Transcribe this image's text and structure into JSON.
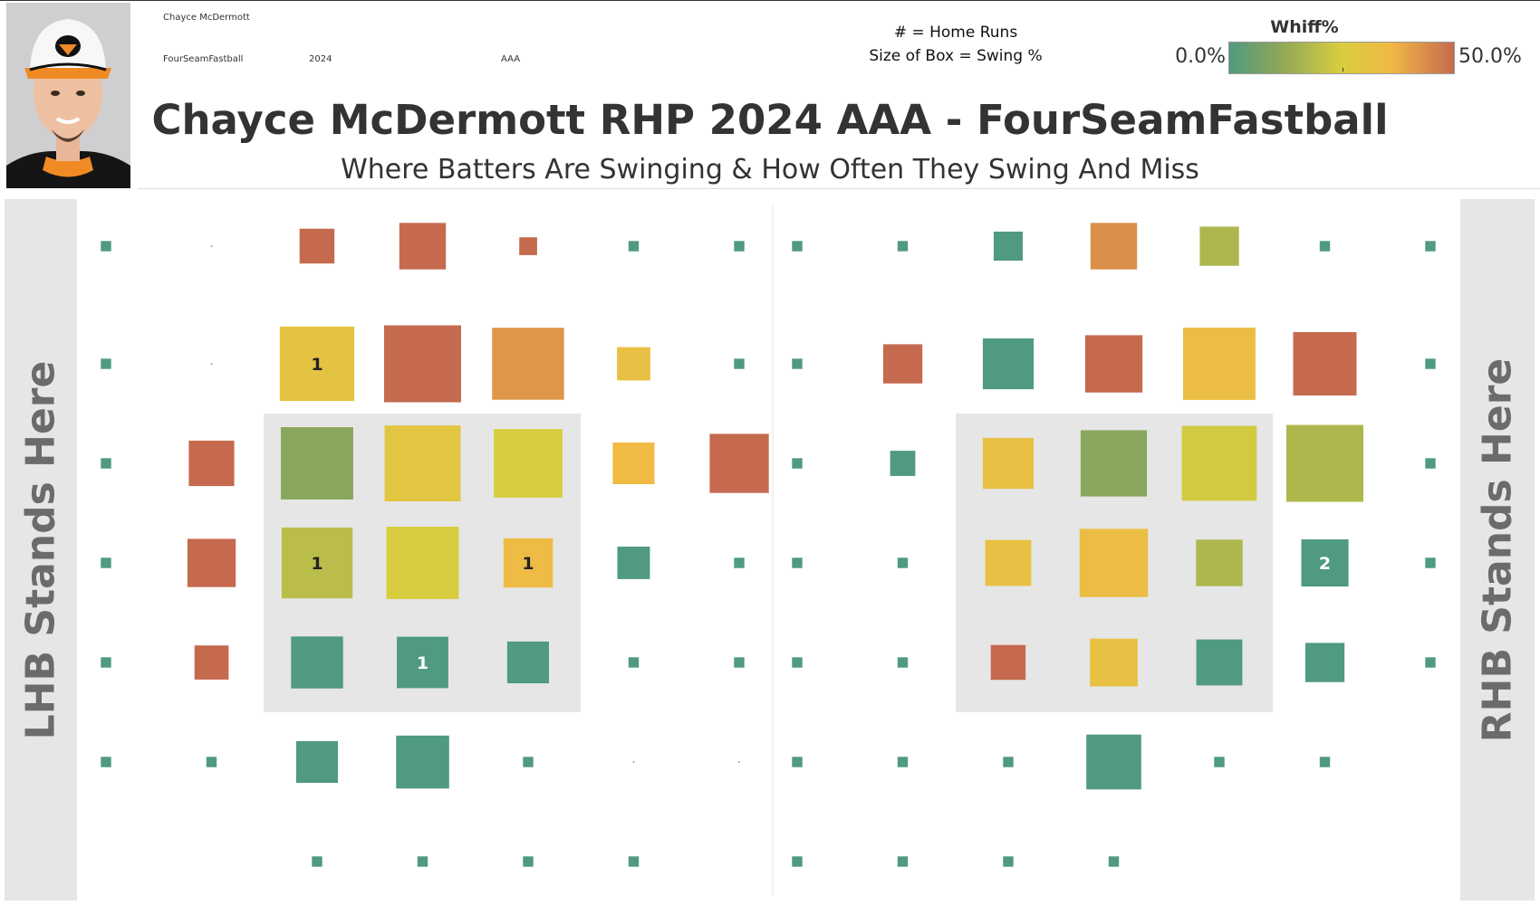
{
  "meta": {
    "player": "Chayce McDermott",
    "pitch": "FourSeamFastball",
    "season": "2024",
    "level": "AAA"
  },
  "photo": {
    "icon": "player-headshot-orioles-cap"
  },
  "legend": {
    "home_runs": "# = Home Runs",
    "box_size": "Size of Box = Swing %",
    "whiff_title": "Whiff%",
    "whiff_min_label": "0.0%",
    "whiff_max_label": "50.0%"
  },
  "title": "Chayce McDermott RHP 2024 AAA - FourSeamFastball",
  "subtitle": "Where Batters Are Swinging & How Often They Swing And Miss",
  "panels": {
    "lhb_label": "LHB Stands Here",
    "rhb_label": "RHB Stands Here"
  },
  "colors": {
    "scale": [
      "#4f9a80",
      "#8ca65a",
      "#d8cd3f",
      "#f1b945",
      "#c56a4f"
    ],
    "strike_zone": "#e6e6e6"
  },
  "chart_data": [
    {
      "type": "heatmap",
      "title": "LHB",
      "x_cells": 7,
      "y_cells": 7,
      "whiff_range": [
        0,
        50
      ],
      "cells": [
        {
          "col": 0,
          "row": 0,
          "swing": 0.2,
          "whiff": 0
        },
        {
          "col": 1,
          "row": 0,
          "swing": 0,
          "whiff": 0
        },
        {
          "col": 2,
          "row": 0,
          "swing": 2.3,
          "whiff": 50
        },
        {
          "col": 3,
          "row": 0,
          "swing": 4.1,
          "whiff": 50
        },
        {
          "col": 4,
          "row": 0,
          "swing": 0.6,
          "whiff": 50
        },
        {
          "col": 5,
          "row": 0,
          "swing": 0.2,
          "whiff": 0
        },
        {
          "col": 6,
          "row": 0,
          "swing": 0.2,
          "whiff": 0
        },
        {
          "col": 0,
          "row": 1,
          "swing": 0.2,
          "whiff": 0
        },
        {
          "col": 1,
          "row": 1,
          "swing": 0,
          "whiff": 0
        },
        {
          "col": 2,
          "row": 1,
          "swing": 10.5,
          "whiff": 31,
          "hr": 1
        },
        {
          "col": 3,
          "row": 1,
          "swing": 11.2,
          "whiff": 50
        },
        {
          "col": 4,
          "row": 1,
          "swing": 9.8,
          "whiff": 43
        },
        {
          "col": 5,
          "row": 1,
          "swing": 2.1,
          "whiff": 33
        },
        {
          "col": 6,
          "row": 1,
          "swing": 0.2,
          "whiff": 0
        },
        {
          "col": 0,
          "row": 2,
          "swing": 0.2,
          "whiff": 0
        },
        {
          "col": 1,
          "row": 2,
          "swing": 3.9,
          "whiff": 50
        },
        {
          "col": 2,
          "row": 2,
          "swing": 9.9,
          "whiff": 12
        },
        {
          "col": 3,
          "row": 2,
          "swing": 10.9,
          "whiff": 30
        },
        {
          "col": 4,
          "row": 2,
          "swing": 8.9,
          "whiff": 25
        },
        {
          "col": 5,
          "row": 2,
          "swing": 3.3,
          "whiff": 37
        },
        {
          "col": 6,
          "row": 2,
          "swing": 6.6,
          "whiff": 50
        },
        {
          "col": 0,
          "row": 3,
          "swing": 0.2,
          "whiff": 0
        },
        {
          "col": 1,
          "row": 3,
          "swing": 4.4,
          "whiff": 50
        },
        {
          "col": 2,
          "row": 3,
          "swing": 9.5,
          "whiff": 20,
          "hr": 1
        },
        {
          "col": 3,
          "row": 3,
          "swing": 9.9,
          "whiff": 25
        },
        {
          "col": 4,
          "row": 3,
          "swing": 4.6,
          "whiff": 36,
          "hr": 1
        },
        {
          "col": 5,
          "row": 3,
          "swing": 2.0,
          "whiff": 0
        },
        {
          "col": 6,
          "row": 3,
          "swing": 0.2,
          "whiff": 0
        },
        {
          "col": 0,
          "row": 4,
          "swing": 0.2,
          "whiff": 0
        },
        {
          "col": 1,
          "row": 4,
          "swing": 2.2,
          "whiff": 50
        },
        {
          "col": 2,
          "row": 4,
          "swing": 5.1,
          "whiff": 0
        },
        {
          "col": 3,
          "row": 4,
          "swing": 5.0,
          "whiff": 0,
          "hr": 1
        },
        {
          "col": 4,
          "row": 4,
          "swing": 3.3,
          "whiff": 0
        },
        {
          "col": 5,
          "row": 4,
          "swing": 0.2,
          "whiff": 0
        },
        {
          "col": 6,
          "row": 4,
          "swing": 0.2,
          "whiff": 0
        },
        {
          "col": 0,
          "row": 5,
          "swing": 0.2,
          "whiff": 0
        },
        {
          "col": 1,
          "row": 5,
          "swing": 0.2,
          "whiff": 0
        },
        {
          "col": 2,
          "row": 5,
          "swing": 3.3,
          "whiff": 0
        },
        {
          "col": 3,
          "row": 5,
          "swing": 5.3,
          "whiff": 0
        },
        {
          "col": 4,
          "row": 5,
          "swing": 0.2,
          "whiff": 0
        },
        {
          "col": 5,
          "row": 5,
          "swing": 0,
          "whiff": 0
        },
        {
          "col": 6,
          "row": 5,
          "swing": 0,
          "whiff": 0
        },
        {
          "col": 2,
          "row": 6,
          "swing": 0.2,
          "whiff": 0
        },
        {
          "col": 3,
          "row": 6,
          "swing": 0.2,
          "whiff": 0
        },
        {
          "col": 4,
          "row": 6,
          "swing": 0.2,
          "whiff": 0
        },
        {
          "col": 5,
          "row": 6,
          "swing": 0.2,
          "whiff": 0
        }
      ]
    },
    {
      "type": "heatmap",
      "title": "RHB",
      "x_cells": 7,
      "y_cells": 7,
      "whiff_range": [
        0,
        50
      ],
      "cells": [
        {
          "col": 0,
          "row": 0,
          "swing": 0.2,
          "whiff": 0
        },
        {
          "col": 1,
          "row": 0,
          "swing": 0.2,
          "whiff": 0
        },
        {
          "col": 2,
          "row": 0,
          "swing": 1.6,
          "whiff": 0
        },
        {
          "col": 3,
          "row": 0,
          "swing": 4.1,
          "whiff": 44
        },
        {
          "col": 4,
          "row": 0,
          "swing": 2.9,
          "whiff": 18
        },
        {
          "col": 5,
          "row": 0,
          "swing": 0.2,
          "whiff": 0
        },
        {
          "col": 6,
          "row": 0,
          "swing": 0.2,
          "whiff": 0
        },
        {
          "col": 0,
          "row": 1,
          "swing": 0.2,
          "whiff": 0
        },
        {
          "col": 1,
          "row": 1,
          "swing": 2.9,
          "whiff": 50
        },
        {
          "col": 2,
          "row": 1,
          "swing": 4.9,
          "whiff": 0
        },
        {
          "col": 3,
          "row": 1,
          "swing": 6.2,
          "whiff": 50
        },
        {
          "col": 4,
          "row": 1,
          "swing": 9.9,
          "whiff": 35
        },
        {
          "col": 5,
          "row": 1,
          "swing": 7.6,
          "whiff": 50
        },
        {
          "col": 6,
          "row": 1,
          "swing": 0.2,
          "whiff": 0
        },
        {
          "col": 0,
          "row": 2,
          "swing": 0.2,
          "whiff": 0
        },
        {
          "col": 1,
          "row": 2,
          "swing": 1.2,
          "whiff": 0
        },
        {
          "col": 2,
          "row": 2,
          "swing": 4.9,
          "whiff": 33
        },
        {
          "col": 3,
          "row": 2,
          "swing": 8.3,
          "whiff": 12
        },
        {
          "col": 4,
          "row": 2,
          "swing": 10.6,
          "whiff": 24
        },
        {
          "col": 5,
          "row": 2,
          "swing": 11.2,
          "whiff": 18
        },
        {
          "col": 6,
          "row": 2,
          "swing": 0.2,
          "whiff": 0
        },
        {
          "col": 0,
          "row": 3,
          "swing": 0.2,
          "whiff": 0
        },
        {
          "col": 1,
          "row": 3,
          "swing": 0.2,
          "whiff": 0
        },
        {
          "col": 2,
          "row": 3,
          "swing": 4.0,
          "whiff": 33
        },
        {
          "col": 3,
          "row": 3,
          "swing": 8.8,
          "whiff": 35
        },
        {
          "col": 4,
          "row": 3,
          "swing": 4.1,
          "whiff": 18
        },
        {
          "col": 5,
          "row": 3,
          "swing": 4.2,
          "whiff": 0,
          "hr": 2
        },
        {
          "col": 6,
          "row": 3,
          "swing": 0.2,
          "whiff": 0
        },
        {
          "col": 0,
          "row": 4,
          "swing": 0.2,
          "whiff": 0
        },
        {
          "col": 1,
          "row": 4,
          "swing": 0.2,
          "whiff": 0
        },
        {
          "col": 2,
          "row": 4,
          "swing": 2.3,
          "whiff": 50
        },
        {
          "col": 3,
          "row": 4,
          "swing": 4.3,
          "whiff": 33
        },
        {
          "col": 4,
          "row": 4,
          "swing": 4.0,
          "whiff": 0
        },
        {
          "col": 5,
          "row": 4,
          "swing": 2.9,
          "whiff": 0
        },
        {
          "col": 6,
          "row": 4,
          "swing": 0.2,
          "whiff": 0
        },
        {
          "col": 0,
          "row": 5,
          "swing": 0.2,
          "whiff": 0
        },
        {
          "col": 1,
          "row": 5,
          "swing": 0.2,
          "whiff": 0
        },
        {
          "col": 2,
          "row": 5,
          "swing": 0.2,
          "whiff": 0
        },
        {
          "col": 3,
          "row": 5,
          "swing": 5.7,
          "whiff": 0
        },
        {
          "col": 4,
          "row": 5,
          "swing": 0.2,
          "whiff": 0
        },
        {
          "col": 5,
          "row": 5,
          "swing": 0.2,
          "whiff": 0
        },
        {
          "col": 0,
          "row": 6,
          "swing": 0.2,
          "whiff": 0
        },
        {
          "col": 1,
          "row": 6,
          "swing": 0.2,
          "whiff": 0
        },
        {
          "col": 2,
          "row": 6,
          "swing": 0.2,
          "whiff": 0
        },
        {
          "col": 3,
          "row": 6,
          "swing": 0.2,
          "whiff": 0
        }
      ]
    }
  ]
}
